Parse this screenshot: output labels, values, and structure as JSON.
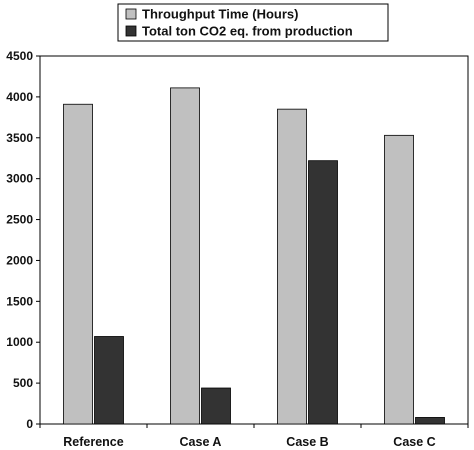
{
  "chart_data": {
    "type": "bar",
    "categories": [
      "Reference",
      "Case A",
      "Case B",
      "Case C"
    ],
    "series": [
      {
        "name": "Throughput Time (Hours)",
        "values": [
          3910,
          4110,
          3850,
          3530
        ],
        "color": "#c0c0c0"
      },
      {
        "name": "Total ton CO2 eq. from production",
        "values": [
          1070,
          440,
          3220,
          80
        ],
        "color": "#333333"
      }
    ],
    "title": "",
    "xlabel": "",
    "ylabel": "",
    "ylim": [
      0,
      4500
    ],
    "yticks": [
      "0",
      "500",
      "1000",
      "1500",
      "2000",
      "2500",
      "3000",
      "3500",
      "4000",
      "4500"
    ],
    "grid": false,
    "legend_position": "top"
  }
}
